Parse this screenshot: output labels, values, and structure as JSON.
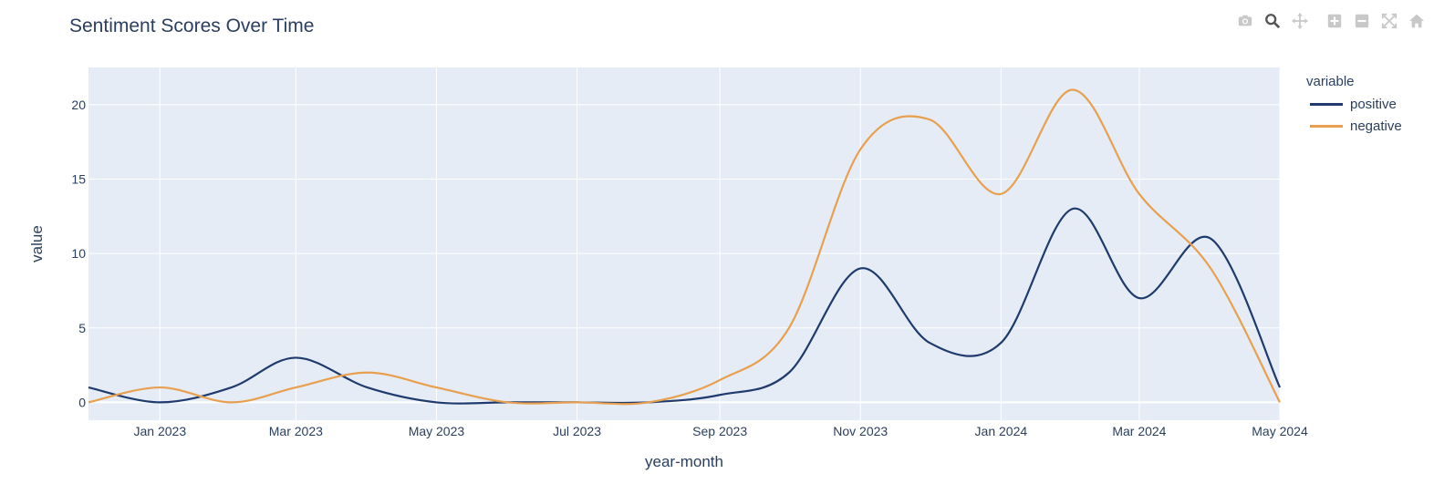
{
  "chart_data": {
    "type": "line",
    "title": "Sentiment Scores Over Time",
    "xlabel": "year-month",
    "ylabel": "value",
    "x": [
      "2022-12-01",
      "2023-01-01",
      "2023-02-01",
      "2023-03-01",
      "2023-04-01",
      "2023-05-01",
      "2023-06-01",
      "2023-07-01",
      "2023-08-01",
      "2023-09-01",
      "2023-10-01",
      "2023-11-01",
      "2023-12-01",
      "2024-01-01",
      "2024-02-01",
      "2024-03-01",
      "2024-04-01",
      "2024-05-01"
    ],
    "x_tick_labels": [
      "Jan 2023",
      "Mar 2023",
      "May 2023",
      "Jul 2023",
      "Sep 2023",
      "Nov 2023",
      "Jan 2024",
      "Mar 2024",
      "May 2024"
    ],
    "x_tick_dates": [
      "2023-01-01",
      "2023-03-01",
      "2023-05-01",
      "2023-07-01",
      "2023-09-01",
      "2023-11-01",
      "2024-01-01",
      "2024-03-01",
      "2024-05-01"
    ],
    "y_ticks": [
      0,
      5,
      10,
      15,
      20
    ],
    "ylim": [
      -1.2,
      22.5
    ],
    "xlim": [
      "2022-12-01",
      "2024-05-01"
    ],
    "grid": true,
    "legend": {
      "title": "variable",
      "placement": "right"
    },
    "series": [
      {
        "name": "positive",
        "color": "#1f3b6e",
        "values": [
          1,
          0,
          1,
          3,
          1,
          0,
          0,
          0,
          0,
          0.5,
          2,
          9,
          4,
          4,
          13,
          7,
          11,
          1
        ]
      },
      {
        "name": "negative",
        "color": "#e8a04f",
        "values": [
          0,
          1,
          0,
          1,
          2,
          1,
          0,
          0,
          0,
          1.5,
          5,
          17,
          19,
          14,
          21,
          14,
          9,
          0
        ]
      }
    ],
    "colors": {
      "plot_bg": "#e5ecf6",
      "grid": "#ffffff",
      "text": "#2a3f5f"
    }
  },
  "toolbar": {
    "items": [
      {
        "icon": "camera-icon"
      },
      {
        "icon": "zoom-icon"
      },
      {
        "icon": "pan-icon"
      },
      {
        "icon": "zoom-in-icon"
      },
      {
        "icon": "zoom-out-icon"
      },
      {
        "icon": "autoscale-icon"
      },
      {
        "icon": "reset-axes-icon"
      }
    ]
  }
}
